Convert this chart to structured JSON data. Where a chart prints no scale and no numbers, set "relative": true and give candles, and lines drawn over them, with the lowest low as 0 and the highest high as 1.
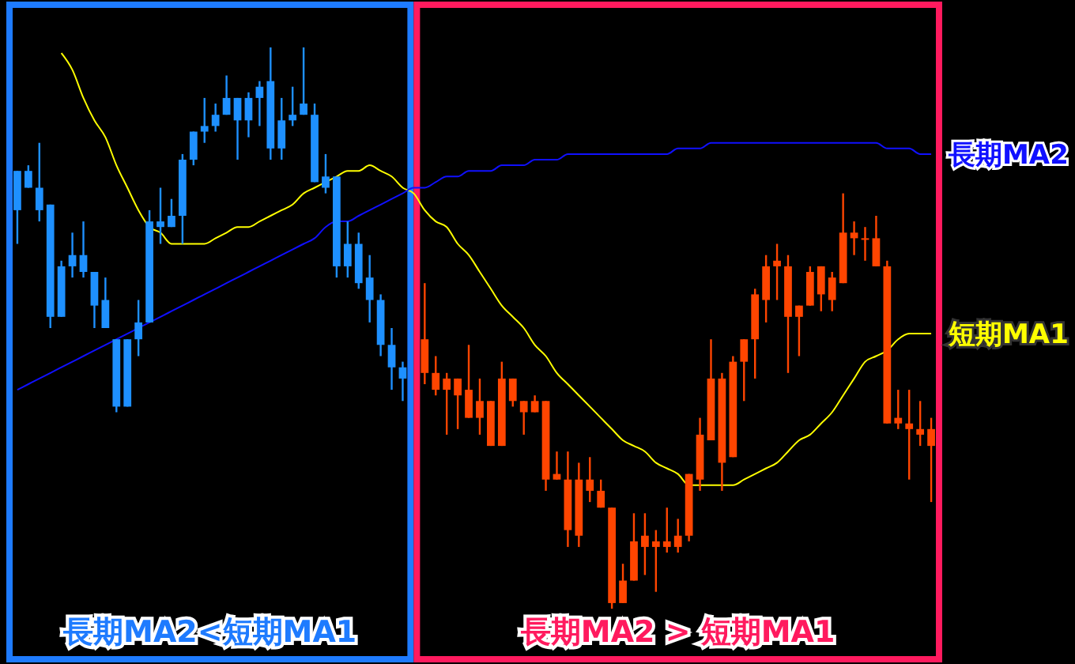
{
  "chart_data": {
    "type": "candlestick",
    "relative": true,
    "categories": [
      null,
      null,
      null,
      null,
      null,
      null,
      null,
      null,
      null,
      null,
      null,
      null,
      null,
      null,
      null,
      null,
      null,
      null,
      null,
      null,
      null,
      null,
      null,
      null,
      null,
      null,
      null,
      null,
      null,
      null,
      null,
      null,
      null,
      null,
      null,
      null,
      null,
      null,
      null,
      null,
      null,
      null,
      null,
      null,
      null,
      null,
      null,
      null,
      null,
      null,
      null,
      null,
      null,
      null,
      null,
      null,
      null,
      null,
      null,
      null,
      null,
      null,
      null,
      null,
      null,
      null,
      null,
      null,
      null,
      null,
      null,
      null,
      null,
      null,
      null,
      null,
      null,
      null,
      null,
      null,
      null,
      null,
      null,
      null
    ],
    "ohlc": [
      [
        0.78,
        0.78,
        0.65,
        0.71
      ],
      [
        0.78,
        0.79,
        0.75,
        0.75
      ],
      [
        0.75,
        0.83,
        0.69,
        0.71
      ],
      [
        0.72,
        0.72,
        0.5,
        0.52
      ],
      [
        0.61,
        0.62,
        0.52,
        0.52
      ],
      [
        0.63,
        0.67,
        0.59,
        0.61
      ],
      [
        0.63,
        0.69,
        0.59,
        0.6
      ],
      [
        0.6,
        0.6,
        0.5,
        0.54
      ],
      [
        0.55,
        0.59,
        0.5,
        0.5
      ],
      [
        0.48,
        0.48,
        0.35,
        0.36
      ],
      [
        0.48,
        0.48,
        0.36,
        0.36
      ],
      [
        0.51,
        0.55,
        0.45,
        0.48
      ],
      [
        0.69,
        0.71,
        0.51,
        0.51
      ],
      [
        0.69,
        0.75,
        0.65,
        0.68
      ],
      [
        0.7,
        0.73,
        0.68,
        0.68
      ],
      [
        0.8,
        0.81,
        0.65,
        0.7
      ],
      [
        0.85,
        0.85,
        0.79,
        0.8
      ],
      [
        0.86,
        0.91,
        0.83,
        0.85
      ],
      [
        0.88,
        0.9,
        0.85,
        0.86
      ],
      [
        0.91,
        0.95,
        0.88,
        0.88
      ],
      [
        0.91,
        0.91,
        0.8,
        0.87
      ],
      [
        0.91,
        0.92,
        0.84,
        0.87
      ],
      [
        0.93,
        0.94,
        0.86,
        0.91
      ],
      [
        0.94,
        1,
        0.8,
        0.82
      ],
      [
        0.87,
        0.91,
        0.8,
        0.82
      ],
      [
        0.88,
        0.93,
        0.86,
        0.87
      ],
      [
        0.9,
        1,
        0.88,
        0.88
      ],
      [
        0.88,
        0.9,
        0.76,
        0.76
      ],
      [
        0.77,
        0.81,
        0.74,
        0.75
      ],
      [
        0.77,
        0.77,
        0.59,
        0.61
      ],
      [
        0.65,
        0.69,
        0.59,
        0.61
      ],
      [
        0.65,
        0.67,
        0.57,
        0.58
      ],
      [
        0.59,
        0.63,
        0.51,
        0.55
      ],
      [
        0.55,
        0.56,
        0.45,
        0.47
      ],
      [
        0.47,
        0.5,
        0.39,
        0.43
      ],
      [
        0.43,
        0.44,
        0.37,
        0.41
      ],
      null,
      [
        0.48,
        0.58,
        0.4,
        0.42
      ],
      [
        0.42,
        0.45,
        0.38,
        0.39
      ],
      [
        0.41,
        0.42,
        0.31,
        0.39
      ],
      [
        0.41,
        0.41,
        0.32,
        0.38
      ],
      [
        0.39,
        0.47,
        0.34,
        0.34
      ],
      [
        0.37,
        0.41,
        0.31,
        0.34
      ],
      [
        0.37,
        0.37,
        0.29,
        0.29
      ],
      [
        0.41,
        0.44,
        0.29,
        0.29
      ],
      [
        0.41,
        0.41,
        0.36,
        0.37
      ],
      [
        0.37,
        0.37,
        0.31,
        0.35
      ],
      [
        0.37,
        0.38,
        0.35,
        0.35
      ],
      [
        0.37,
        0.37,
        0.21,
        0.23
      ],
      [
        0.24,
        0.28,
        0.23,
        0.23
      ],
      [
        0.23,
        0.28,
        0.11,
        0.14
      ],
      [
        0.23,
        0.26,
        0.11,
        0.13
      ],
      [
        0.23,
        0.27,
        0.19,
        0.21
      ],
      [
        0.21,
        0.23,
        0.18,
        0.18
      ],
      [
        0.18,
        0.18,
        0,
        0.01
      ],
      [
        0.05,
        0.08,
        0.01,
        0.01
      ],
      [
        0.12,
        0.17,
        0.05,
        0.05
      ],
      [
        0.13,
        0.17,
        0.06,
        0.11
      ],
      [
        0.12,
        0.14,
        0.03,
        0.11
      ],
      [
        0.12,
        0.18,
        0.1,
        0.11
      ],
      [
        0.13,
        0.16,
        0.1,
        0.11
      ],
      [
        0.24,
        0.24,
        0.12,
        0.13
      ],
      [
        0.31,
        0.34,
        0.21,
        0.23
      ],
      [
        0.41,
        0.48,
        0.3,
        0.3
      ],
      [
        0.41,
        0.42,
        0.21,
        0.26
      ],
      [
        0.44,
        0.45,
        0.27,
        0.27
      ],
      [
        0.48,
        0.48,
        0.37,
        0.44
      ],
      [
        0.56,
        0.57,
        0.41,
        0.48
      ],
      [
        0.61,
        0.63,
        0.51,
        0.55
      ],
      [
        0.62,
        0.65,
        0.55,
        0.61
      ],
      [
        0.61,
        0.63,
        0.42,
        0.52
      ],
      [
        0.54,
        0.54,
        0.45,
        0.52
      ],
      [
        0.6,
        0.61,
        0.54,
        0.54
      ],
      [
        0.61,
        0.61,
        0.53,
        0.56
      ],
      [
        0.59,
        0.6,
        0.53,
        0.55
      ],
      [
        0.67,
        0.74,
        0.58,
        0.58
      ],
      [
        0.67,
        0.69,
        0.63,
        0.66
      ],
      [
        0.66,
        0.68,
        0.62,
        0.66
      ],
      [
        0.66,
        0.7,
        0.61,
        0.61
      ],
      [
        0.61,
        0.62,
        0.33,
        0.33
      ],
      [
        0.34,
        0.39,
        0.32,
        0.33
      ],
      [
        0.33,
        0.39,
        0.23,
        0.32
      ],
      [
        0.32,
        0.37,
        0.29,
        0.31
      ],
      [
        0.32,
        0.34,
        0.19,
        0.29
      ]
    ],
    "colors": [
      "#1e90ff",
      "#1e90ff",
      "#1e90ff",
      "#1e90ff",
      "#1e90ff",
      "#1e90ff",
      "#1e90ff",
      "#1e90ff",
      "#1e90ff",
      "#1e90ff",
      "#1e90ff",
      "#1e90ff",
      "#1e90ff",
      "#1e90ff",
      "#1e90ff",
      "#1e90ff",
      "#1e90ff",
      "#1e90ff",
      "#1e90ff",
      "#1e90ff",
      "#1e90ff",
      "#1e90ff",
      "#1e90ff",
      "#1e90ff",
      "#1e90ff",
      "#1e90ff",
      "#1e90ff",
      "#1e90ff",
      "#1e90ff",
      "#1e90ff",
      "#1e90ff",
      "#1e90ff",
      "#1e90ff",
      "#1e90ff",
      "#1e90ff",
      "#1e90ff",
      null,
      "#ff4500",
      "#ff4500",
      "#ff4500",
      "#ff4500",
      "#ff4500",
      "#ff4500",
      "#ff4500",
      "#ff4500",
      "#ff4500",
      "#ff4500",
      "#ff4500",
      "#ff4500",
      "#ff4500",
      "#ff4500",
      "#ff4500",
      "#ff4500",
      "#ff4500",
      "#ff4500",
      "#ff4500",
      "#ff4500",
      "#ff4500",
      "#ff4500",
      "#ff4500",
      "#ff4500",
      "#ff4500",
      "#ff4500",
      "#ff4500",
      "#ff4500",
      "#ff4500",
      "#ff4500",
      "#ff4500",
      "#ff4500",
      "#ff4500",
      "#ff4500",
      "#ff4500",
      "#ff4500",
      "#ff4500",
      "#ff4500",
      "#ff4500",
      "#ff4500",
      "#ff4500",
      "#ff4500",
      "#ff4500",
      "#ff4500",
      "#ff4500",
      "#ff4500",
      "#ff4500"
    ],
    "series": [
      {
        "name": "短期MA1",
        "type": "line",
        "color": "#ffff00",
        "values": [
          null,
          null,
          null,
          null,
          0.99,
          0.96,
          0.91,
          0.87,
          0.84,
          0.79,
          0.75,
          0.71,
          0.68,
          0.67,
          0.65,
          0.65,
          0.65,
          0.65,
          0.66,
          0.67,
          0.68,
          0.68,
          0.69,
          0.7,
          0.71,
          0.72,
          0.74,
          0.75,
          0.76,
          0.77,
          0.78,
          0.78,
          0.79,
          0.78,
          0.77,
          0.75,
          0.74,
          0.71,
          0.69,
          0.68,
          0.65,
          0.63,
          0.6,
          0.57,
          0.54,
          0.52,
          0.5,
          0.47,
          0.45,
          0.42,
          0.4,
          0.38,
          0.36,
          0.34,
          0.32,
          0.3,
          0.29,
          0.28,
          0.26,
          0.25,
          0.24,
          0.22,
          0.22,
          0.22,
          0.22,
          0.22,
          0.23,
          0.24,
          0.25,
          0.26,
          0.28,
          0.3,
          0.31,
          0.33,
          0.35,
          0.38,
          0.41,
          0.44,
          0.45,
          0.46,
          0.48,
          0.49,
          0.49,
          0.49
        ]
      },
      {
        "name": "長期MA2",
        "type": "line",
        "color": "#1010ff",
        "values": [
          0.39,
          0.4,
          0.41,
          0.42,
          0.43,
          0.44,
          0.45,
          0.46,
          0.47,
          0.48,
          0.49,
          0.5,
          0.51,
          0.52,
          0.53,
          0.54,
          0.55,
          0.56,
          0.57,
          0.58,
          0.59,
          0.6,
          0.61,
          0.62,
          0.63,
          0.64,
          0.65,
          0.66,
          0.68,
          0.69,
          0.69,
          0.7,
          0.71,
          0.72,
          0.73,
          0.74,
          0.75,
          0.75,
          0.76,
          0.77,
          0.77,
          0.78,
          0.78,
          0.78,
          0.79,
          0.79,
          0.79,
          0.8,
          0.8,
          0.8,
          0.81,
          0.81,
          0.81,
          0.81,
          0.81,
          0.81,
          0.81,
          0.81,
          0.81,
          0.81,
          0.82,
          0.82,
          0.82,
          0.83,
          0.83,
          0.83,
          0.83,
          0.83,
          0.83,
          0.83,
          0.83,
          0.83,
          0.83,
          0.83,
          0.83,
          0.83,
          0.83,
          0.83,
          0.83,
          0.82,
          0.82,
          0.82,
          0.81,
          0.81
        ]
      }
    ],
    "annotations": [
      "長期MA2<短期MA1",
      "長期MA2 > 短期MA1"
    ]
  }
}
